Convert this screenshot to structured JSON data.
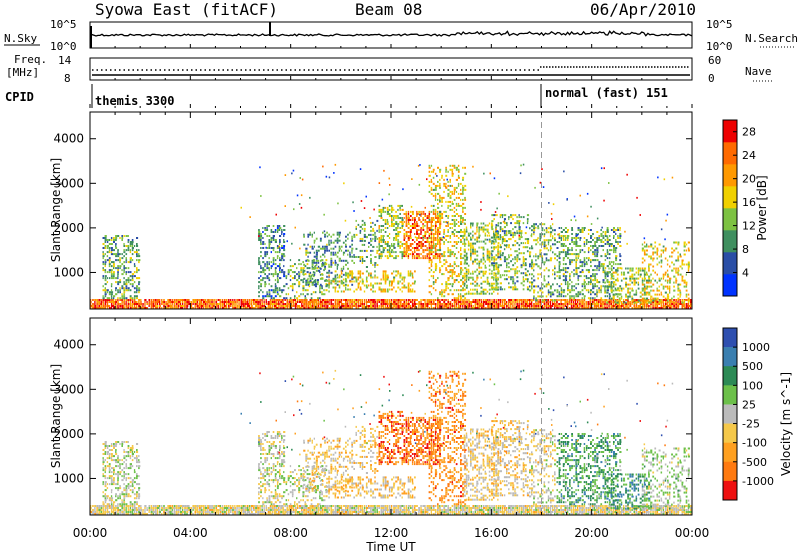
{
  "header": {
    "station": "Syowa East (fitACF)",
    "beam": "Beam 08",
    "date": "06/Apr/2010"
  },
  "panels": {
    "nsky_label": "N.Sky",
    "nsky_ticks": [
      "10^5",
      "10^0"
    ],
    "nsearch_label": "N.Search",
    "nsearch_ticks": [
      "10^5",
      "10^0"
    ],
    "freq_label_1": "Freq.",
    "freq_label_2": "[MHz]",
    "freq_ticks": [
      "14",
      "8"
    ],
    "nave_label": "Nave",
    "nave_ticks": [
      "60",
      "0"
    ],
    "cpid_label": "CPID",
    "cpid_modes": [
      "themis 3300",
      "normal (fast) 151"
    ]
  },
  "colors": {
    "power_scale": [
      "#0033ff",
      "#2a4ea6",
      "#3f8f5f",
      "#7dc242",
      "#f0d000",
      "#ff9900",
      "#ff6a00",
      "#ee0000"
    ],
    "velocity_scale": [
      "#2e4fb0",
      "#3a7fb0",
      "#2c8a55",
      "#6cc04a",
      "#bbbbbb",
      "#f5c84a",
      "#ffa020",
      "#ff7a10",
      "#ee1010"
    ]
  },
  "chart_data": [
    {
      "type": "heatmap",
      "title": "Power",
      "xlabel": "Time UT",
      "ylabel": "Slant Range [km]",
      "xticks": [
        "00:00",
        "04:00",
        "08:00",
        "12:00",
        "16:00",
        "20:00",
        "00:00"
      ],
      "yticks": [
        "1000",
        "2000",
        "3000",
        "4000"
      ],
      "ylim": [
        180,
        4600
      ],
      "colorbar_label": "Power [dB]",
      "colorbar_ticks": [
        "4",
        "8",
        "12",
        "16",
        "20",
        "24",
        "28"
      ],
      "clim": [
        0,
        30
      ],
      "mode_change_hour": 18
    },
    {
      "type": "heatmap",
      "title": "Velocity",
      "xlabel": "Time UT",
      "ylabel": "Slant Range [km]",
      "xticks": [
        "00:00",
        "04:00",
        "08:00",
        "12:00",
        "16:00",
        "20:00",
        "00:00"
      ],
      "yticks": [
        "1000",
        "2000",
        "3000",
        "4000"
      ],
      "ylim": [
        180,
        4600
      ],
      "colorbar_label": "Velocity [m s^-1]",
      "colorbar_ticks": [
        "1000",
        "500",
        "100",
        "25",
        "-25",
        "-100",
        "-500",
        "-1000"
      ],
      "mode_change_hour": 18
    }
  ]
}
